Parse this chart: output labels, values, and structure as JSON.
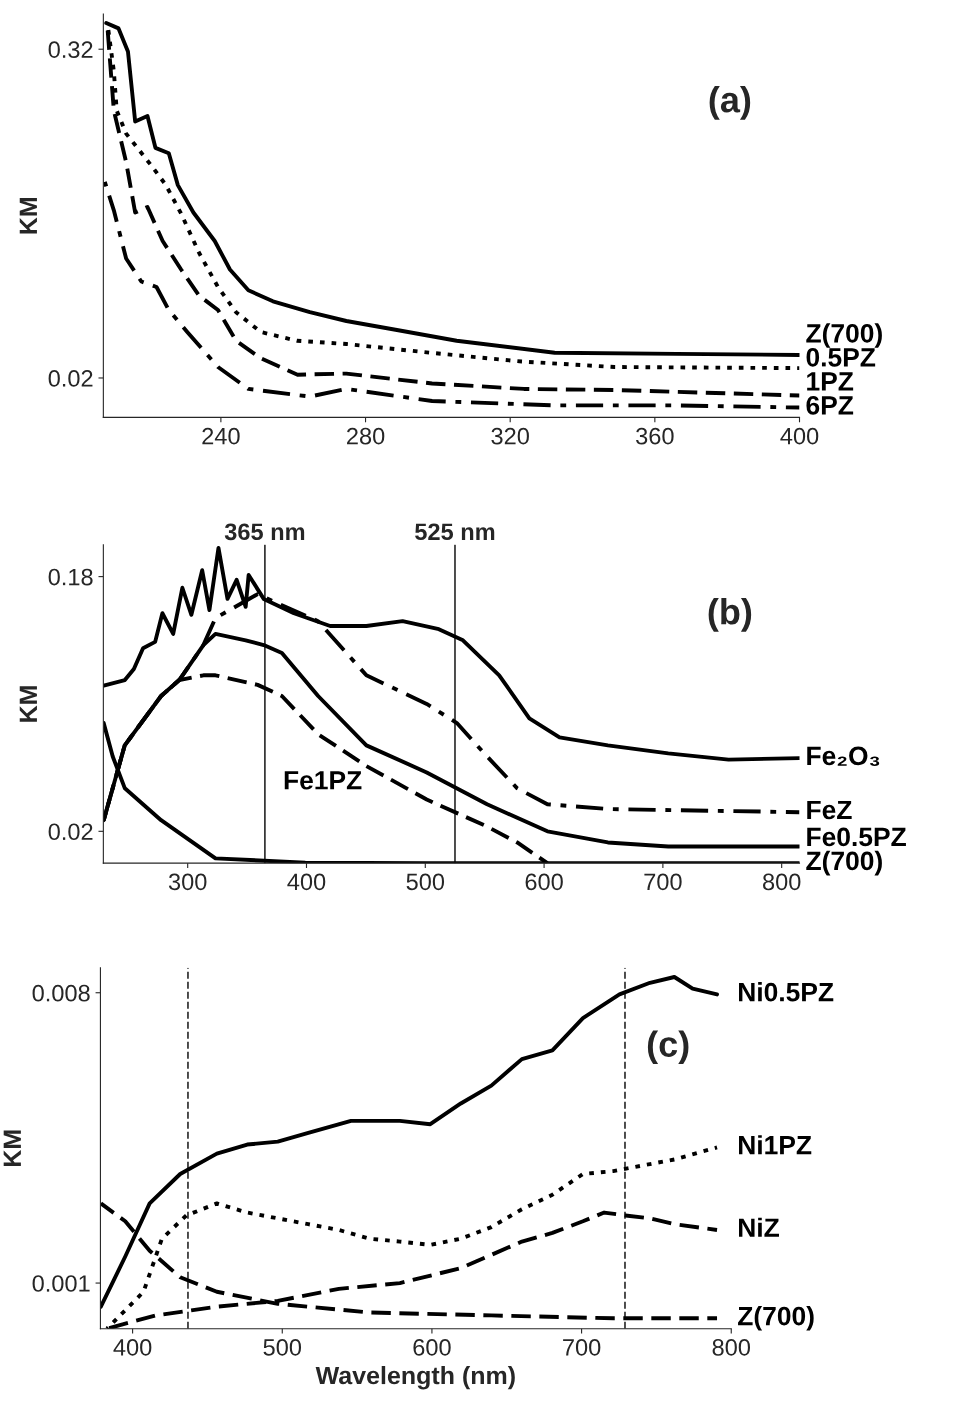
{
  "chart_data": [
    {
      "type": "line",
      "ylabel": "KM",
      "xlim": [
        207.5,
        400
      ],
      "ylim": [
        -0.016,
        0.352
      ],
      "xticks": [
        240,
        280,
        320,
        360,
        400
      ],
      "yticks": [
        0.02,
        0.32
      ],
      "annotations": [
        "(a)"
      ],
      "series": [
        {
          "name": "Z(700)",
          "color": "#000000",
          "line_style": "solid",
          "x": [
            208.3,
            211.7,
            214.3,
            216.3,
            219.7,
            221.9,
            225.6,
            228.1,
            232.4,
            238.3,
            242.5,
            247.6,
            254.4,
            264.6,
            274.7,
            288.3,
            305.2,
            332.3,
            366.1,
            400
          ],
          "values": [
            0.344,
            0.339,
            0.318,
            0.254,
            0.259,
            0.23,
            0.225,
            0.196,
            0.171,
            0.145,
            0.119,
            0.1,
            0.09,
            0.08,
            0.072,
            0.064,
            0.054,
            0.043,
            0.042,
            0.041
          ]
        },
        {
          "name": "0.5PZ",
          "color": "#000000",
          "line_style": "dotted",
          "x": [
            208.7,
            210.4,
            211.2,
            213.8,
            220.5,
            224.8,
            229,
            234,
            239.2,
            244.2,
            251,
            261,
            274.7,
            298,
            323.2,
            348.8,
            400
          ],
          "values": [
            0.342,
            0.3,
            0.264,
            0.243,
            0.215,
            0.196,
            0.17,
            0.134,
            0.103,
            0.08,
            0.062,
            0.054,
            0.051,
            0.043,
            0.035,
            0.03,
            0.029
          ]
        },
        {
          "name": "1PZ",
          "color": "#000000",
          "line_style": "dashed",
          "x": [
            208.7,
            210.4,
            213.8,
            216.3,
            219.7,
            223.9,
            229,
            234,
            239.2,
            244.2,
            251,
            261.2,
            274.7,
            298.4,
            323.8,
            349.2,
            400
          ],
          "values": [
            0.337,
            0.264,
            0.217,
            0.171,
            0.176,
            0.145,
            0.119,
            0.095,
            0.082,
            0.054,
            0.038,
            0.023,
            0.024,
            0.015,
            0.01,
            0.009,
            0.004
          ]
        },
        {
          "name": "6PZ",
          "color": "#000000",
          "line_style": "dashdot",
          "x": [
            207.9,
            210.4,
            213.8,
            218,
            222.2,
            225.6,
            230.7,
            239.2,
            247.6,
            264.6,
            274.7,
            298.4,
            332.3,
            366,
            400
          ],
          "values": [
            0.199,
            0.173,
            0.129,
            0.108,
            0.103,
            0.082,
            0.062,
            0.03,
            0.01,
            0.003,
            0.01,
            -0.001,
            -0.005,
            -0.005,
            -0.007
          ]
        }
      ]
    },
    {
      "type": "line",
      "ylabel": "KM",
      "xlim": [
        229,
        815
      ],
      "ylim": [
        0,
        0.2
      ],
      "xticks": [
        300,
        400,
        500,
        600,
        700,
        800
      ],
      "yticks": [
        0.02,
        0.18
      ],
      "annotations": [
        "(b)"
      ],
      "ref_lines": [
        {
          "axis": "x",
          "value": 365,
          "label": "365 nm"
        },
        {
          "axis": "x",
          "value": 525,
          "label": "525 nm"
        }
      ],
      "series": [
        {
          "name": "Fe₂O₃",
          "color": "#000000",
          "line_style": "solid",
          "x": [
            229.3,
            247.1,
            254.7,
            262.4,
            272.6,
            278.7,
            287.8,
            295.5,
            303.1,
            312.2,
            318.3,
            325.9,
            333.5,
            341.2,
            348.8,
            351.3,
            364,
            389.4,
            419.9,
            450.4,
            480.9,
            511.4,
            531.7,
            562.2,
            587.6,
            613,
            653.7,
            704.5,
            755.3,
            815
          ],
          "values": [
            0.1115,
            0.115,
            0.122,
            0.135,
            0.139,
            0.157,
            0.144,
            0.173,
            0.156,
            0.184,
            0.159,
            0.198,
            0.166,
            0.178,
            0.161,
            0.181,
            0.166,
            0.157,
            0.149,
            0.149,
            0.152,
            0.147,
            0.14,
            0.118,
            0.091,
            0.079,
            0.074,
            0.069,
            0.065,
            0.066
          ]
        },
        {
          "name": "FeZ",
          "color": "#000000",
          "line_style": "dashdot",
          "x": [
            229.3,
            247,
            277.6,
            292.9,
            313.2,
            323.4,
            358.9,
            379.3,
            409.8,
            450.4,
            501.2,
            526.6,
            552,
            577.4,
            602.8,
            653.7,
            815
          ],
          "values": [
            0.027,
            0.074,
            0.105,
            0.115,
            0.137,
            0.154,
            0.169,
            0.162,
            0.152,
            0.118,
            0.1,
            0.088,
            0.067,
            0.047,
            0.037,
            0.034,
            0.032
          ]
        },
        {
          "name": "Fe0.5PZ",
          "color": "#000000",
          "line_style": "solid",
          "x": [
            229.3,
            247,
            277.6,
            292.9,
            313.2,
            323.4,
            348.8,
            364,
            379.3,
            409.8,
            450.4,
            501.2,
            552,
            602.8,
            653.7,
            704.5,
            815
          ],
          "values": [
            0.027,
            0.074,
            0.105,
            0.115,
            0.137,
            0.144,
            0.14,
            0.137,
            0.132,
            0.105,
            0.074,
            0.057,
            0.037,
            0.02,
            0.013,
            0.0105,
            0.0105
          ]
        },
        {
          "name": "Fe1PZ",
          "color": "#000000",
          "line_style": "dashed",
          "x": [
            229.3,
            247,
            277.6,
            292.9,
            313.2,
            323.4,
            358.9,
            379.3,
            409.8,
            450.4,
            501.2,
            552,
            577.4,
            602.8
          ],
          "values": [
            0.027,
            0.074,
            0.105,
            0.115,
            0.118,
            0.118,
            0.112,
            0.105,
            0.081,
            0.061,
            0.04,
            0.023,
            0.013,
            0.0
          ]
        },
        {
          "name": "Z(700)",
          "color": "#000000",
          "line_style": "solid",
          "x": [
            229.3,
            236.9,
            247.1,
            277.6,
            323.4,
            399,
            501,
            815
          ],
          "values": [
            0.088,
            0.067,
            0.047,
            0.027,
            0.003,
            0.0003,
            0.0,
            0.0
          ]
        }
      ]
    },
    {
      "type": "line",
      "ylabel": "KM",
      "xlabel": "Wavelength (nm)",
      "xlim": [
        378.5,
        800
      ],
      "ylim": [
        -0.0001,
        0.0086
      ],
      "xticks": [
        400,
        500,
        600,
        700,
        800
      ],
      "yticks": [
        0.001,
        0.008
      ],
      "annotations": [
        "(c)"
      ],
      "ref_lines": [
        {
          "axis": "x",
          "value": 437,
          "line_style": "dashed"
        },
        {
          "axis": "x",
          "value": 729,
          "line_style": "dashed"
        }
      ],
      "series": [
        {
          "name": "Ni0.5PZ",
          "color": "#000000",
          "line_style": "solid",
          "x": [
            378.8,
            395.1,
            411.4,
            431.8,
            456.3,
            476.6,
            497,
            517.4,
            545.9,
            578.6,
            598.9,
            619.3,
            639.7,
            660.1,
            680.5,
            700.9,
            725.3,
            745.7,
            762,
            774.2,
            790.5
          ],
          "values": [
            0.00043,
            0.00164,
            0.00292,
            0.00363,
            0.00412,
            0.00434,
            0.00441,
            0.00462,
            0.00491,
            0.00491,
            0.00483,
            0.00533,
            0.00576,
            0.0064,
            0.00661,
            0.00739,
            0.00796,
            0.00824,
            0.00838,
            0.0081,
            0.00796
          ]
        },
        {
          "name": "Ni1PZ",
          "color": "#000000",
          "line_style": "dotted",
          "x": [
            382.9,
            407.3,
            419.6,
            435.9,
            456.3,
            476.6,
            497,
            517.4,
            537.8,
            558.2,
            578.6,
            598.9,
            619.3,
            639.7,
            660.1,
            680.5,
            700.9,
            721.2,
            741.6,
            762,
            790.5
          ],
          "values": [
            -0.0001,
            0.00079,
            0.00207,
            0.00263,
            0.00292,
            0.0027,
            0.00256,
            0.00242,
            0.00228,
            0.00207,
            0.002,
            0.00192,
            0.00207,
            0.00235,
            0.00278,
            0.00313,
            0.00363,
            0.0037,
            0.00384,
            0.00398,
            0.00427
          ]
        },
        {
          "name": "NiZ",
          "color": "#000000",
          "line_style": "dashed",
          "x": [
            382.9,
            415.5,
            456.3,
            497,
            537.8,
            578.6,
            619.3,
            660.1,
            680.5,
            700.9,
            715.1,
            729.4,
            745.7,
            762,
            790.5
          ],
          "values": [
            -0.0001,
            0.00022,
            0.00043,
            0.00057,
            0.00086,
            0.001,
            0.00136,
            0.002,
            0.00221,
            0.00249,
            0.0027,
            0.00263,
            0.00256,
            0.00242,
            0.00228
          ]
        },
        {
          "name": "Z(700)",
          "color": "#000000",
          "line_style": "dashed",
          "x": [
            378.8,
            395.1,
            411.4,
            431.8,
            456.3,
            497,
            517.4,
            558.2,
            639.7,
            721.2,
            790.5
          ],
          "values": [
            0.00292,
            0.00249,
            0.00178,
            0.00114,
            0.00079,
            0.0005,
            0.00043,
            0.00029,
            0.00022,
            0.00015,
            0.00015
          ]
        }
      ]
    }
  ]
}
